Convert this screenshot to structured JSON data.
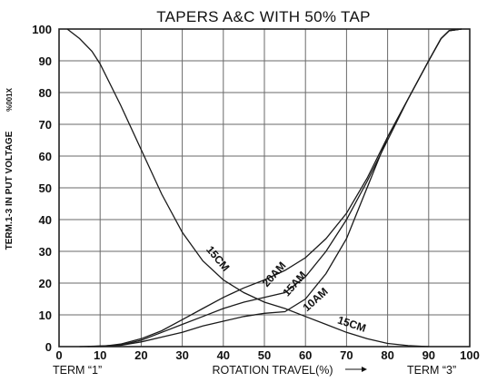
{
  "chart_data": {
    "type": "line",
    "title": "TAPERS A&C WITH 50% TAP",
    "xlabel": "ROTATION TRAVEL(%)",
    "ylabel": "TERM.1-3 IN PUT VOLTAGE",
    "ylabel_extra": "%001X",
    "x_end_labels": {
      "left": "TERM “1”",
      "right": "TERM “3”"
    },
    "xlim": [
      0,
      100
    ],
    "ylim": [
      0,
      100
    ],
    "x_ticks": [
      0,
      10,
      20,
      30,
      40,
      50,
      60,
      70,
      80,
      90,
      100
    ],
    "y_ticks": [
      0,
      10,
      20,
      30,
      40,
      50,
      60,
      70,
      80,
      90,
      100
    ],
    "grid": true,
    "series": [
      {
        "name": "15CM",
        "points": [
          [
            2,
            100
          ],
          [
            5,
            97
          ],
          [
            8,
            93
          ],
          [
            10,
            89
          ],
          [
            15,
            76
          ],
          [
            20,
            62
          ],
          [
            25,
            48
          ],
          [
            30,
            36
          ],
          [
            35,
            27
          ],
          [
            40,
            21
          ],
          [
            45,
            17
          ],
          [
            50,
            14
          ],
          [
            55,
            12
          ],
          [
            60,
            9.5
          ],
          [
            65,
            7
          ],
          [
            70,
            4.5
          ],
          [
            75,
            2.5
          ],
          [
            80,
            1
          ],
          [
            85,
            0.3
          ],
          [
            90,
            0
          ]
        ]
      },
      {
        "name": "20AM",
        "points": [
          [
            10,
            0
          ],
          [
            15,
            0.8
          ],
          [
            20,
            2.5
          ],
          [
            25,
            5
          ],
          [
            30,
            8.5
          ],
          [
            35,
            12
          ],
          [
            40,
            15.5
          ],
          [
            45,
            18.5
          ],
          [
            50,
            21
          ],
          [
            55,
            24
          ],
          [
            60,
            28
          ],
          [
            65,
            34
          ],
          [
            70,
            42
          ],
          [
            75,
            53
          ],
          [
            80,
            66
          ],
          [
            85,
            78
          ],
          [
            90,
            90
          ],
          [
            93,
            97
          ],
          [
            95,
            99.5
          ],
          [
            98,
            100
          ]
        ]
      },
      {
        "name": "15AM",
        "points": [
          [
            7,
            0
          ],
          [
            15,
            0.5
          ],
          [
            20,
            2
          ],
          [
            25,
            4.5
          ],
          [
            30,
            7
          ],
          [
            35,
            9.5
          ],
          [
            40,
            12
          ],
          [
            45,
            14
          ],
          [
            50,
            15.5
          ],
          [
            55,
            17
          ],
          [
            60,
            22
          ],
          [
            65,
            30
          ],
          [
            70,
            40
          ],
          [
            75,
            52
          ],
          [
            80,
            65
          ],
          [
            85,
            78
          ],
          [
            90,
            90
          ],
          [
            93,
            97
          ],
          [
            95,
            99.5
          ],
          [
            98,
            100
          ]
        ]
      },
      {
        "name": "10AM",
        "points": [
          [
            5,
            0
          ],
          [
            15,
            0.4
          ],
          [
            20,
            1.5
          ],
          [
            25,
            3
          ],
          [
            30,
            4.5
          ],
          [
            35,
            6.5
          ],
          [
            40,
            8
          ],
          [
            45,
            9.5
          ],
          [
            50,
            10.5
          ],
          [
            55,
            11
          ],
          [
            60,
            15
          ],
          [
            65,
            23
          ],
          [
            70,
            34
          ],
          [
            75,
            50
          ],
          [
            80,
            66
          ],
          [
            85,
            78
          ],
          [
            90,
            90
          ],
          [
            93,
            97
          ],
          [
            95,
            99.5
          ],
          [
            98,
            100
          ]
        ]
      }
    ],
    "annotations": [
      {
        "text": "15CM",
        "at": [
          38,
          27
        ],
        "angle": 50
      },
      {
        "text": "15CM",
        "at": [
          71,
          6
        ],
        "angle": 18
      },
      {
        "text": "20AM",
        "at": [
          53,
          22
        ],
        "angle": -48
      },
      {
        "text": "15AM",
        "at": [
          58,
          19
        ],
        "angle": -48
      },
      {
        "text": "10AM",
        "at": [
          63,
          14
        ],
        "angle": -42
      }
    ]
  }
}
